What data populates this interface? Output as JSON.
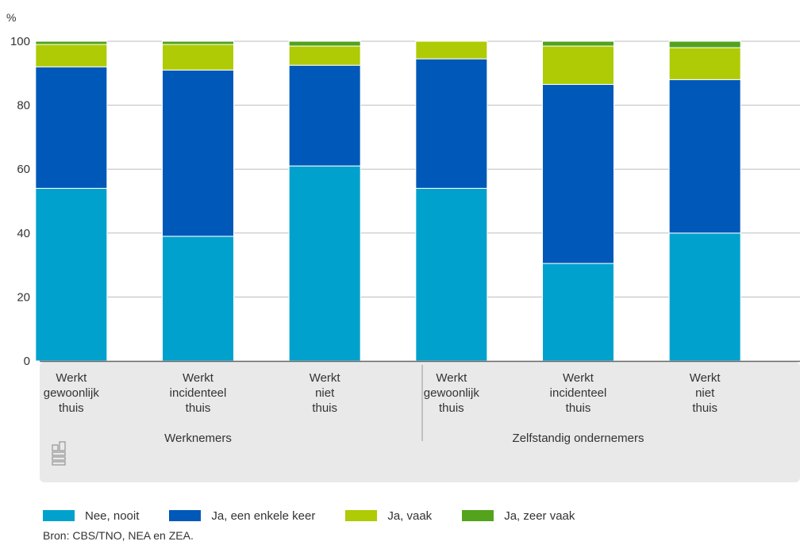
{
  "chart_data": {
    "type": "stacked-bar",
    "y_unit": "%",
    "ylim": [
      0,
      100
    ],
    "yticks": [
      0,
      20,
      40,
      60,
      80,
      100
    ],
    "grid": true,
    "categories": [
      [
        "Werkt",
        "gewoonlijk",
        "thuis"
      ],
      [
        "Werkt",
        "incidenteel",
        "thuis"
      ],
      [
        "Werkt",
        "niet",
        "thuis"
      ],
      [
        "Werkt",
        "gewoonlijk",
        "thuis"
      ],
      [
        "Werkt",
        "incidenteel",
        "thuis"
      ],
      [
        "Werkt",
        "niet",
        "thuis"
      ]
    ],
    "groups": [
      {
        "label": "Werknemers",
        "category_indices": [
          0,
          1,
          2
        ]
      },
      {
        "label": "Zelfstandig ondernemers",
        "category_indices": [
          3,
          4,
          5
        ]
      }
    ],
    "series": [
      {
        "name": "Nee, nooit",
        "color": "#00a1cd",
        "values": [
          54,
          39,
          61,
          54,
          30.5,
          40
        ]
      },
      {
        "name": "Ja, een enkele keer",
        "color": "#0058b8",
        "values": [
          38,
          52,
          31.5,
          40.5,
          56,
          48
        ]
      },
      {
        "name": "Ja, vaak",
        "color": "#afcb05",
        "values": [
          7,
          8,
          6,
          5.5,
          12,
          10
        ]
      },
      {
        "name": "Ja, zeer vaak",
        "color": "#53a31d",
        "values": [
          1,
          1,
          1.5,
          0,
          1.5,
          2
        ]
      }
    ],
    "legend_placement": "bottom"
  },
  "source": "Bron: CBS/TNO, NEA en ZEA.",
  "logo_icon": "cbs-logo-icon"
}
